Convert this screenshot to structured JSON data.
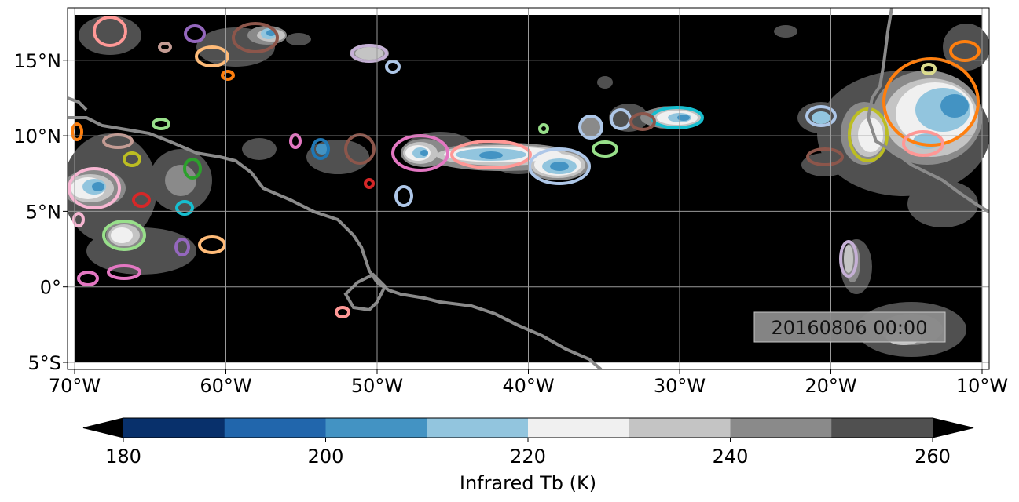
{
  "map": {
    "timestamp": "20160806 00:00",
    "background_color": "#000000",
    "coastline_color": "#8a8a8a",
    "x_ticks": [
      {
        "lon": -70,
        "label": "70°W"
      },
      {
        "lon": -60,
        "label": "60°W"
      },
      {
        "lon": -50,
        "label": "50°W"
      },
      {
        "lon": -40,
        "label": "40°W"
      },
      {
        "lon": -30,
        "label": "30°W"
      },
      {
        "lon": -20,
        "label": "20°W"
      },
      {
        "lon": -10,
        "label": "10°W"
      }
    ],
    "y_ticks": [
      {
        "lat": 15,
        "label": "15°N"
      },
      {
        "lat": 10,
        "label": "10°N"
      },
      {
        "lat": 5,
        "label": "5°N"
      },
      {
        "lat": 0,
        "label": "0°"
      },
      {
        "lat": -5,
        "label": "5°S"
      }
    ]
  },
  "colorbar": {
    "label": "Infrared Tb (K)",
    "ticks": [
      "180",
      "200",
      "220",
      "240",
      "260"
    ],
    "colors": [
      "#08306b",
      "#2166ac",
      "#4393c3",
      "#92c5de",
      "#f0f0f0",
      "#c4c4c4",
      "#8a8a8a",
      "#505050"
    ],
    "under_color": "#000000",
    "over_color": "#000000"
  },
  "chart_data": {
    "type": "heatmap",
    "xlim": [
      -70.0,
      -10.0
    ],
    "ylim": [
      -5.0,
      18.0
    ],
    "colorbar_range": [
      180,
      260
    ],
    "colorbar_levels": [
      180,
      190,
      200,
      210,
      220,
      230,
      240,
      250,
      260
    ],
    "features": [
      {
        "id": "itcz-central",
        "lon": -41.5,
        "lat": 8.3,
        "width_deg": 5.5,
        "height_deg": 2.3,
        "min_tb": 200,
        "outline": "#ff9896"
      },
      {
        "id": "itcz-east",
        "lon": -39.0,
        "lat": 7.7,
        "width_deg": 3.5,
        "height_deg": 2.0,
        "min_tb": 200,
        "outline": "#aec7e8"
      },
      {
        "id": "itcz-west",
        "lon": -47.0,
        "lat": 8.8,
        "width_deg": 2.5,
        "height_deg": 2.0,
        "min_tb": 200,
        "outline": "#e377c2"
      },
      {
        "id": "mid-atl-30w",
        "lon": -30.0,
        "lat": 11.2,
        "width_deg": 3.0,
        "height_deg": 1.3,
        "min_tb": 205,
        "outline": "#17becf"
      },
      {
        "id": "africa-mcs",
        "lon": -13.0,
        "lat": 12.0,
        "width_deg": 5.0,
        "height_deg": 5.0,
        "min_tb": 200,
        "outline": "#ff7f0e"
      },
      {
        "id": "africa-mcs-2",
        "lon": -17.5,
        "lat": 10.2,
        "width_deg": 2.5,
        "height_deg": 3.0,
        "min_tb": 215,
        "outline": "#bcbd22"
      },
      {
        "id": "sa-northwest",
        "lon": -68.5,
        "lat": 6.0,
        "width_deg": 4.0,
        "height_deg": 2.5,
        "min_tb": 200,
        "outline": "#f7b6d2"
      },
      {
        "id": "caribbean-57w",
        "lon": -57.8,
        "lat": 16.5,
        "width_deg": 3.0,
        "height_deg": 1.5,
        "min_tb": 205,
        "outline": "#8c564b"
      }
    ]
  }
}
